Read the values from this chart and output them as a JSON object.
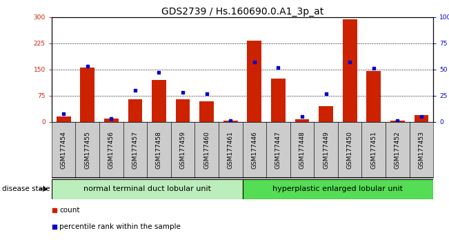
{
  "title": "GDS2739 / Hs.160690.0.A1_3p_at",
  "categories": [
    "GSM177454",
    "GSM177455",
    "GSM177456",
    "GSM177457",
    "GSM177458",
    "GSM177459",
    "GSM177460",
    "GSM177461",
    "GSM177446",
    "GSM177447",
    "GSM177448",
    "GSM177449",
    "GSM177450",
    "GSM177451",
    "GSM177452",
    "GSM177453"
  ],
  "counts": [
    15,
    155,
    10,
    65,
    120,
    65,
    60,
    3,
    232,
    125,
    8,
    45,
    293,
    145,
    3,
    20
  ],
  "percentiles": [
    8,
    53,
    3,
    30,
    47,
    28,
    27,
    1,
    57,
    52,
    5,
    27,
    57,
    51,
    1,
    5
  ],
  "group1_label": "normal terminal duct lobular unit",
  "group2_label": "hyperplastic enlarged lobular unit",
  "n_group1": 8,
  "n_group2": 8,
  "ylim_left": [
    0,
    300
  ],
  "ylim_right": [
    0,
    100
  ],
  "yticks_left": [
    0,
    75,
    150,
    225,
    300
  ],
  "yticks_right": [
    0,
    25,
    50,
    75,
    100
  ],
  "bar_color": "#cc2200",
  "dot_color": "#0000cc",
  "group1_bg": "#bbeebb",
  "group2_bg": "#55dd55",
  "label_bg": "#cccccc",
  "legend_count_label": "count",
  "legend_percentile_label": "percentile rank within the sample",
  "disease_state_label": "disease state",
  "title_fontsize": 10,
  "tick_fontsize": 6.5,
  "group_fontsize": 8,
  "legend_fontsize": 7.5
}
